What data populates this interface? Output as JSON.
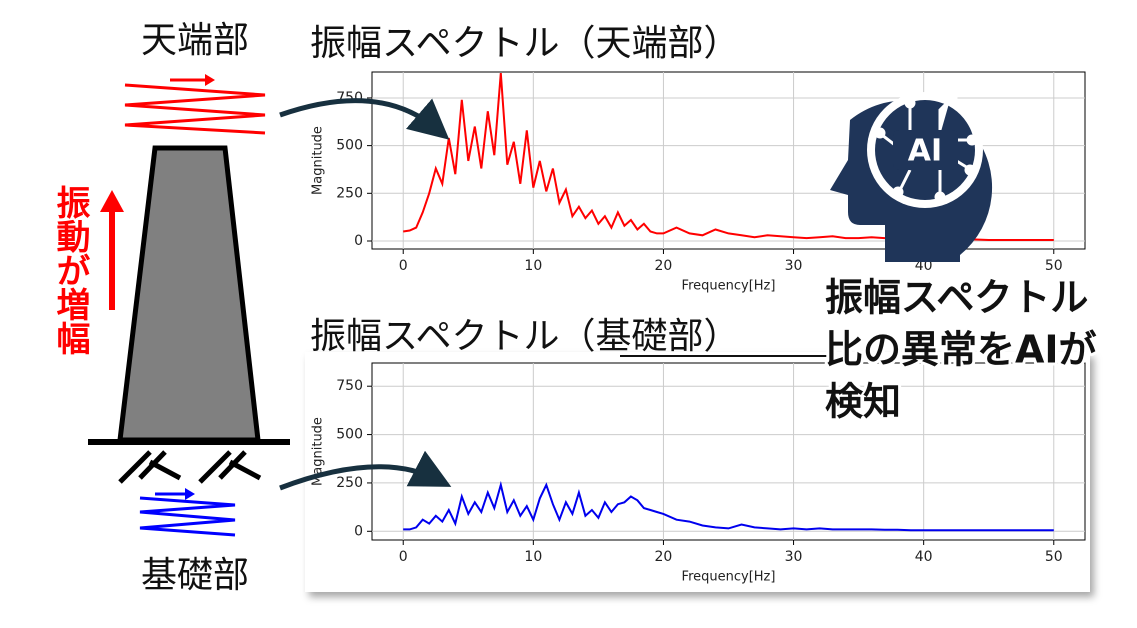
{
  "labels": {
    "top_part": "天端部",
    "bottom_part": "基礎部",
    "amplification": "振動が増幅",
    "ai_icon": "AI"
  },
  "ai_caption": {
    "lines": [
      "振幅スペクトル",
      "比の異常をAIが",
      "検知"
    ]
  },
  "chart_data": [
    {
      "type": "line",
      "title": "振幅スペクトル（天端部）",
      "xlabel": "Frequency[Hz]",
      "ylabel": "Magnitude",
      "color": "#ff0000",
      "x": [
        0,
        0.5,
        1,
        1.5,
        2,
        2.5,
        3,
        3.5,
        4,
        4.5,
        5,
        5.5,
        6,
        6.5,
        7,
        7.5,
        8,
        8.5,
        9,
        9.5,
        10,
        10.5,
        11,
        11.5,
        12,
        12.5,
        13,
        13.5,
        14,
        14.5,
        15,
        15.5,
        16,
        16.5,
        17,
        17.5,
        18,
        18.5,
        19,
        19.5,
        20,
        21,
        22,
        23,
        24,
        25,
        26,
        27,
        28,
        29,
        30,
        31,
        32,
        33,
        34,
        35,
        36,
        37,
        38,
        39,
        40,
        41,
        42,
        43,
        44,
        45,
        46,
        47,
        48,
        49,
        50
      ],
      "values": [
        50,
        55,
        70,
        150,
        250,
        380,
        300,
        540,
        350,
        740,
        420,
        600,
        380,
        680,
        450,
        880,
        400,
        520,
        300,
        580,
        280,
        420,
        260,
        380,
        200,
        270,
        130,
        180,
        120,
        160,
        90,
        130,
        70,
        150,
        80,
        110,
        60,
        90,
        50,
        40,
        40,
        70,
        40,
        30,
        60,
        40,
        30,
        20,
        30,
        25,
        20,
        15,
        20,
        25,
        15,
        15,
        20,
        15,
        10,
        15,
        10,
        10,
        8,
        8,
        8,
        5,
        5,
        5,
        5,
        5,
        5
      ],
      "xlim": [
        -2.4,
        52.4
      ],
      "ylim": [
        -42,
        886
      ],
      "xticks": [
        0,
        10,
        20,
        30,
        40,
        50
      ],
      "yticks": [
        0,
        250,
        500,
        750
      ],
      "grid": true
    },
    {
      "type": "line",
      "title": "振幅スペクトル（基礎部）",
      "xlabel": "Frequency[Hz]",
      "ylabel": "Magnitude",
      "color": "#0000ee",
      "x": [
        0,
        0.5,
        1,
        1.5,
        2,
        2.5,
        3,
        3.5,
        4,
        4.5,
        5,
        5.5,
        6,
        6.5,
        7,
        7.5,
        8,
        8.5,
        9,
        9.5,
        10,
        10.5,
        11,
        11.5,
        12,
        12.5,
        13,
        13.5,
        14,
        14.5,
        15,
        15.5,
        16,
        16.5,
        17,
        17.5,
        18,
        18.5,
        19,
        19.5,
        20,
        21,
        22,
        23,
        24,
        25,
        26,
        27,
        28,
        29,
        30,
        31,
        32,
        33,
        34,
        35,
        36,
        37,
        38,
        39,
        40,
        41,
        42,
        43,
        44,
        45,
        46,
        47,
        48,
        49,
        50
      ],
      "values": [
        10,
        10,
        20,
        60,
        40,
        80,
        50,
        110,
        40,
        180,
        90,
        150,
        100,
        200,
        120,
        240,
        100,
        160,
        80,
        130,
        60,
        170,
        240,
        140,
        60,
        150,
        90,
        200,
        80,
        110,
        70,
        150,
        100,
        140,
        150,
        180,
        160,
        120,
        110,
        100,
        90,
        60,
        50,
        30,
        20,
        15,
        35,
        20,
        15,
        10,
        15,
        10,
        15,
        10,
        10,
        10,
        10,
        8,
        8,
        5,
        5,
        5,
        5,
        5,
        5,
        5,
        5,
        5,
        5,
        5,
        5
      ],
      "xlim": [
        -2.4,
        52.4
      ],
      "ylim": [
        -45,
        870
      ],
      "xticks": [
        0,
        10,
        20,
        30,
        40,
        50
      ],
      "yticks": [
        0,
        250,
        500,
        750
      ],
      "grid": true
    }
  ]
}
